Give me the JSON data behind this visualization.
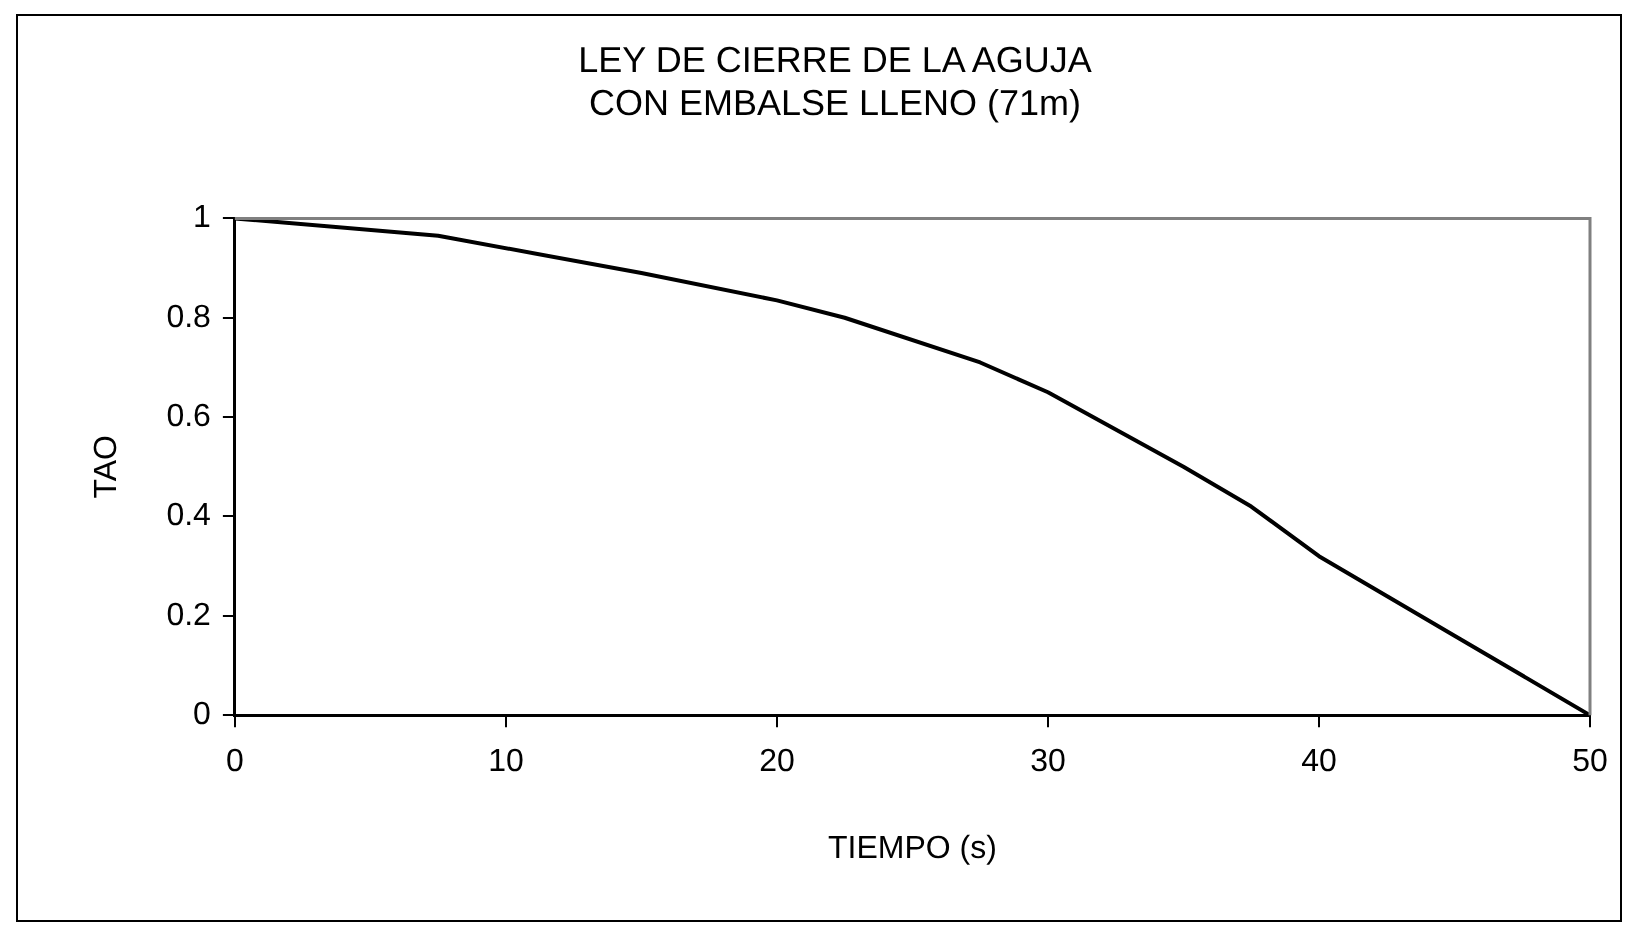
{
  "chart_data": {
    "type": "line",
    "title": "LEY DE CIERRE DE LA AGUJA\nCON EMBALSE LLENO (71m)",
    "xlabel": "TIEMPO (s)",
    "ylabel": "TAO",
    "x": [
      0,
      7.5,
      15,
      20,
      22.5,
      27.5,
      30,
      35,
      37.5,
      40,
      45,
      50
    ],
    "series": [
      {
        "color": "#000000",
        "values": [
          1,
          0.965,
          0.89,
          0.835,
          0.8,
          0.71,
          0.65,
          0.5,
          0.42,
          0.32,
          0.16,
          0
        ]
      }
    ],
    "xlim": [
      0,
      50
    ],
    "xticks": [
      0,
      10,
      20,
      30,
      40,
      50
    ],
    "ylim": [
      0,
      1
    ],
    "yticks": [
      0,
      0.2,
      0.4,
      0.6,
      0.8,
      1
    ],
    "grid": false,
    "legend": false,
    "marker": "none",
    "line_style": "solid"
  }
}
